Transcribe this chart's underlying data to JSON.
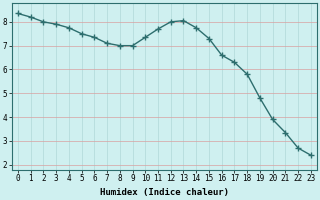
{
  "x": [
    0,
    1,
    2,
    3,
    4,
    5,
    6,
    7,
    8,
    9,
    10,
    11,
    12,
    13,
    14,
    15,
    16,
    17,
    18,
    19,
    20,
    21,
    22,
    23
  ],
  "y": [
    8.35,
    8.2,
    8.0,
    7.9,
    7.75,
    7.5,
    7.35,
    7.1,
    7.0,
    7.0,
    7.35,
    7.7,
    8.0,
    8.05,
    7.75,
    7.3,
    6.6,
    6.3,
    5.8,
    4.8,
    3.9,
    3.35,
    2.7,
    2.4
  ],
  "line_color": "#2d6e6e",
  "marker": "+",
  "marker_size": 4,
  "bg_color": "#cff0f0",
  "grid_color": "#b0d8d8",
  "hline_color": "#d8a0a0",
  "xlabel": "Humidex (Indice chaleur)",
  "ylim": [
    1.8,
    8.8
  ],
  "xlim": [
    -0.5,
    23.5
  ],
  "yticks": [
    2,
    3,
    4,
    5,
    6,
    7,
    8
  ],
  "xticks": [
    0,
    1,
    2,
    3,
    4,
    5,
    6,
    7,
    8,
    9,
    10,
    11,
    12,
    13,
    14,
    15,
    16,
    17,
    18,
    19,
    20,
    21,
    22,
    23
  ],
  "xlabel_fontsize": 6.5,
  "tick_fontsize": 5.5,
  "spine_color": "#2d6e6e"
}
